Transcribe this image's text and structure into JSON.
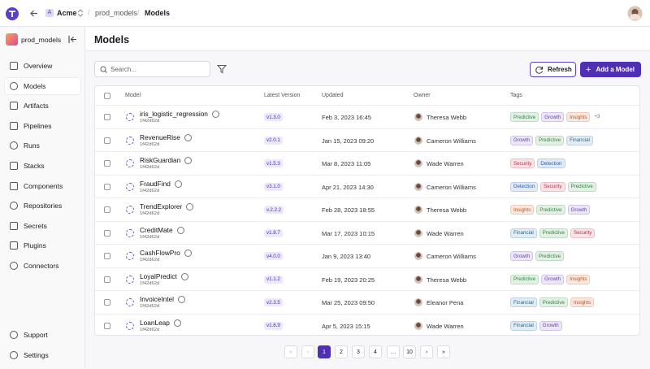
{
  "topbar": {
    "workspace_initial": "A",
    "workspace": "Acme",
    "breadcrumbs": [
      "prod_models",
      "Models"
    ]
  },
  "sidebar": {
    "project": "prod_models",
    "nav": [
      "Overview",
      "Models",
      "Artifacts",
      "Pipelines",
      "Runs",
      "Stacks",
      "Components",
      "Repositories",
      "Secrets",
      "Plugins",
      "Connectors"
    ],
    "active": "Models",
    "footer": [
      "Support",
      "Settings"
    ]
  },
  "main": {
    "title": "Models",
    "search_placeholder": "Search...",
    "refresh": "Refresh",
    "add": "Add a Model"
  },
  "table": {
    "columns": [
      "Model",
      "Latest Version",
      "Updated",
      "Owner",
      "Tags"
    ],
    "rows": [
      {
        "name": "iris_logistic_regression",
        "id": "1f42d62d",
        "version": "v1.3.0",
        "updated": "Feb 3, 2023 16:45",
        "owner": "Theresa Webb",
        "tags": [
          {
            "text": "Predictive",
            "color": "#2f8a3e"
          },
          {
            "text": "Growth",
            "color": "#6a3fc4"
          },
          {
            "text": "Insights",
            "color": "#c2571a"
          }
        ],
        "more": "+3"
      },
      {
        "name": "RevenueRise",
        "id": "1f42d62d",
        "version": "v2.0.1",
        "updated": "Jan 15, 2023 09:20",
        "owner": "Cameron Williams",
        "tags": [
          {
            "text": "Growth",
            "color": "#6a3fc4"
          },
          {
            "text": "Predictive",
            "color": "#2f8a3e"
          },
          {
            "text": "Financial",
            "color": "#1f6f9a"
          }
        ]
      },
      {
        "name": "RiskGuardian",
        "id": "1f42d62d",
        "version": "v1.5.3",
        "updated": "Mar 8, 2023 11:05",
        "owner": "Wade Warren",
        "tags": [
          {
            "text": "Security",
            "color": "#c22f4a"
          },
          {
            "text": "Detection",
            "color": "#2a5fb0"
          }
        ]
      },
      {
        "name": "FraudFind",
        "id": "1f42d62d",
        "version": "v3.1.0",
        "updated": "Apr 21, 2023 14:30",
        "owner": "Cameron Williams",
        "tags": [
          {
            "text": "Detection",
            "color": "#2a5fb0"
          },
          {
            "text": "Security",
            "color": "#c22f4a"
          },
          {
            "text": "Predictive",
            "color": "#2f8a3e"
          }
        ]
      },
      {
        "name": "TrendExplorer",
        "id": "1f42d62d",
        "version": "v.2.2.2",
        "updated": "Feb 28, 2023 18:55",
        "owner": "Theresa Webb",
        "tags": [
          {
            "text": "Insights",
            "color": "#c2571a"
          },
          {
            "text": "Predictive",
            "color": "#2f8a3e"
          },
          {
            "text": "Growth",
            "color": "#6a3fc4"
          }
        ]
      },
      {
        "name": "CreditMate",
        "id": "1f42d62d",
        "version": "v1.8.7",
        "updated": "Mar 17, 2023 10:15",
        "owner": "Wade Warren",
        "tags": [
          {
            "text": "Financial",
            "color": "#1f6f9a"
          },
          {
            "text": "Predictive",
            "color": "#2f8a3e"
          },
          {
            "text": "Security",
            "color": "#c22f4a"
          }
        ]
      },
      {
        "name": "CashFlowPro",
        "id": "1f42d62d",
        "version": "v4.0.0",
        "updated": "Jan 9, 2023 13:40",
        "owner": "Cameron Williams",
        "tags": [
          {
            "text": "Growth",
            "color": "#6a3fc4"
          },
          {
            "text": "Predictive",
            "color": "#2f8a3e"
          }
        ]
      },
      {
        "name": "LoyalPredict",
        "id": "1f42d62d",
        "version": "v1.1.2",
        "updated": "Feb 19, 2023 20:25",
        "owner": "Theresa Webb",
        "tags": [
          {
            "text": "Predictive",
            "color": "#2f8a3e"
          },
          {
            "text": "Growth",
            "color": "#6a3fc4"
          },
          {
            "text": "Insights",
            "color": "#c2571a"
          }
        ]
      },
      {
        "name": "InvoiceIntel",
        "id": "1f42d62d",
        "version": "v2.3.5",
        "updated": "Mar 25, 2023 09:50",
        "owner": "Eleanor Pena",
        "tags": [
          {
            "text": "Financial",
            "color": "#1f6f9a"
          },
          {
            "text": "Predictive",
            "color": "#2f8a3e"
          },
          {
            "text": "Insights",
            "color": "#c2571a"
          }
        ]
      },
      {
        "name": "LoanLeap",
        "id": "1f42d62d",
        "version": "v1.6.9",
        "updated": "Apr 5, 2023 15:15",
        "owner": "Wade Warren",
        "tags": [
          {
            "text": "Financial",
            "color": "#1f6f9a"
          },
          {
            "text": "Growth",
            "color": "#6a3fc4"
          }
        ]
      }
    ]
  },
  "pagination": {
    "pages": [
      "1",
      "2",
      "3",
      "4",
      "…",
      "10"
    ],
    "active": "1"
  }
}
